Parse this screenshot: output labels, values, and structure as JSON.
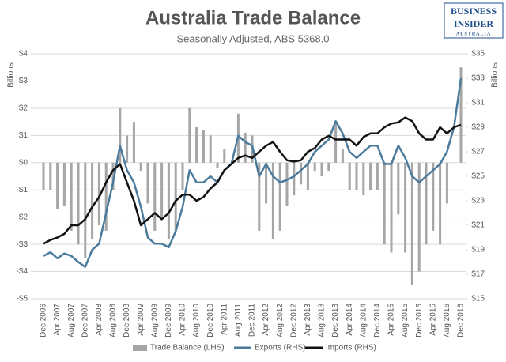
{
  "chart_data": {
    "type": "combo",
    "title": "Australia Trade Balance",
    "subtitle": "Seasonally Adjusted, ABS 5368.0",
    "ylabel": "Billions",
    "y2label": "Billions",
    "logo": {
      "line1": "BUSINESS",
      "line2": "INSIDER",
      "line3": "AUSTRALIA"
    },
    "categories": [
      "Dec 2006",
      null,
      "Apr 2007",
      null,
      "Aug 2007",
      null,
      "Dec 2007",
      null,
      "Apr 2008",
      null,
      "Aug 2008",
      null,
      "Dec 2008",
      null,
      "Apr 2009",
      null,
      "Aug 2009",
      null,
      "Dec 2009",
      null,
      "Apr 2010",
      null,
      "Aug 2010",
      null,
      "Dec 2010",
      null,
      "Apr 2011",
      null,
      "Aug 2011",
      null,
      "Dec 2011",
      null,
      "Apr 2012",
      null,
      "Aug 2012",
      null,
      "Dec 2012",
      null,
      "Apr 2013",
      null,
      "Aug 2013",
      null,
      "Dec 2013",
      null,
      "Apr 2014",
      null,
      "Aug 2014",
      null,
      "Dec 2014",
      null,
      "Apr 2015",
      null,
      "Aug 2015",
      null,
      "Dec 2015",
      null,
      "Apr 2016",
      null,
      "Aug 2016",
      null,
      "Dec 2016"
    ],
    "ylim": [
      -5,
      4
    ],
    "yticks": [
      {
        "value": -5,
        "label": "-$5"
      },
      {
        "value": -4,
        "label": "-$4"
      },
      {
        "value": -3,
        "label": "-$3"
      },
      {
        "value": -2,
        "label": "-$2"
      },
      {
        "value": -1,
        "label": "-$1"
      },
      {
        "value": 0,
        "label": "$0"
      },
      {
        "value": 1,
        "label": "$1"
      },
      {
        "value": 2,
        "label": "$2"
      },
      {
        "value": 3,
        "label": "$3"
      },
      {
        "value": 4,
        "label": "$4"
      }
    ],
    "y2lim": [
      15,
      35
    ],
    "y2ticks": [
      {
        "value": 15,
        "label": "$15"
      },
      {
        "value": 17,
        "label": "$17"
      },
      {
        "value": 19,
        "label": "$19"
      },
      {
        "value": 21,
        "label": "$21"
      },
      {
        "value": 23,
        "label": "$23"
      },
      {
        "value": 25,
        "label": "$25"
      },
      {
        "value": 27,
        "label": "$27"
      },
      {
        "value": 29,
        "label": "$29"
      },
      {
        "value": 31,
        "label": "$31"
      },
      {
        "value": 33,
        "label": "$33"
      },
      {
        "value": 35,
        "label": "$35"
      }
    ],
    "grid": true,
    "legend": "bottom",
    "series": [
      {
        "name": "Trade Balance (LHS)",
        "type": "bar",
        "axis": "y",
        "color": "#a6a6a6",
        "values": [
          -1.0,
          -1.0,
          -1.7,
          -1.6,
          -2.5,
          -3.0,
          -3.5,
          -2.8,
          -2.3,
          -2.5,
          -1.0,
          2.0,
          1.0,
          1.5,
          -0.3,
          -1.5,
          -2.5,
          -2.0,
          -2.8,
          -2.5,
          -1.0,
          2.0,
          1.3,
          1.2,
          1.0,
          -0.2,
          0.5,
          0.0,
          1.8,
          1.1,
          1.0,
          -2.5,
          -1.5,
          -2.8,
          -2.5,
          -1.6,
          -1.2,
          -0.8,
          -1.0,
          -0.3,
          -0.5,
          -0.3,
          1.5,
          0.5,
          -1.0,
          -1.0,
          -1.2,
          -1.0,
          -1.0,
          -3.0,
          -3.3,
          -1.9,
          -3.3,
          -4.5,
          -4.0,
          -3.0,
          -2.5,
          -3.0,
          -1.5,
          0.0,
          3.5
        ]
      },
      {
        "name": "Exports (RHS)",
        "type": "line",
        "axis": "y2",
        "color": "#4a7a9c",
        "values": [
          18.5,
          18.8,
          18.3,
          18.7,
          18.5,
          18.0,
          17.6,
          19.0,
          19.5,
          22.0,
          24.5,
          27.5,
          25.5,
          24.5,
          22.5,
          20.0,
          19.5,
          19.5,
          19.2,
          20.5,
          22.5,
          25.5,
          24.5,
          24.5,
          25.0,
          24.5,
          25.5,
          26.0,
          28.3,
          27.8,
          27.5,
          25.0,
          26.0,
          25.0,
          24.5,
          24.7,
          25.0,
          25.5,
          26.0,
          27.0,
          27.5,
          28.0,
          29.5,
          28.5,
          27.0,
          26.5,
          27.0,
          27.5,
          27.5,
          26.0,
          26.0,
          27.5,
          26.5,
          25.0,
          24.5,
          25.0,
          25.5,
          26.0,
          27.0,
          29.0,
          33.0
        ]
      },
      {
        "name": "Imports (RHS)",
        "type": "line",
        "axis": "y2",
        "color": "#111111",
        "values": [
          19.5,
          19.8,
          20.0,
          20.3,
          21.0,
          21.0,
          21.5,
          22.5,
          23.3,
          24.5,
          25.5,
          26.0,
          24.5,
          23.0,
          21.0,
          21.5,
          22.0,
          21.5,
          22.0,
          23.0,
          23.5,
          23.5,
          23.0,
          23.3,
          24.0,
          24.5,
          25.5,
          26.0,
          26.5,
          26.7,
          26.5,
          27.0,
          27.5,
          27.8,
          27.0,
          26.3,
          26.2,
          26.3,
          27.0,
          27.3,
          28.0,
          28.3,
          28.0,
          28.0,
          28.0,
          27.5,
          28.2,
          28.5,
          28.5,
          29.0,
          29.3,
          29.4,
          29.8,
          29.5,
          28.5,
          28.0,
          28.0,
          29.0,
          28.5,
          29.0,
          29.2
        ]
      }
    ]
  }
}
